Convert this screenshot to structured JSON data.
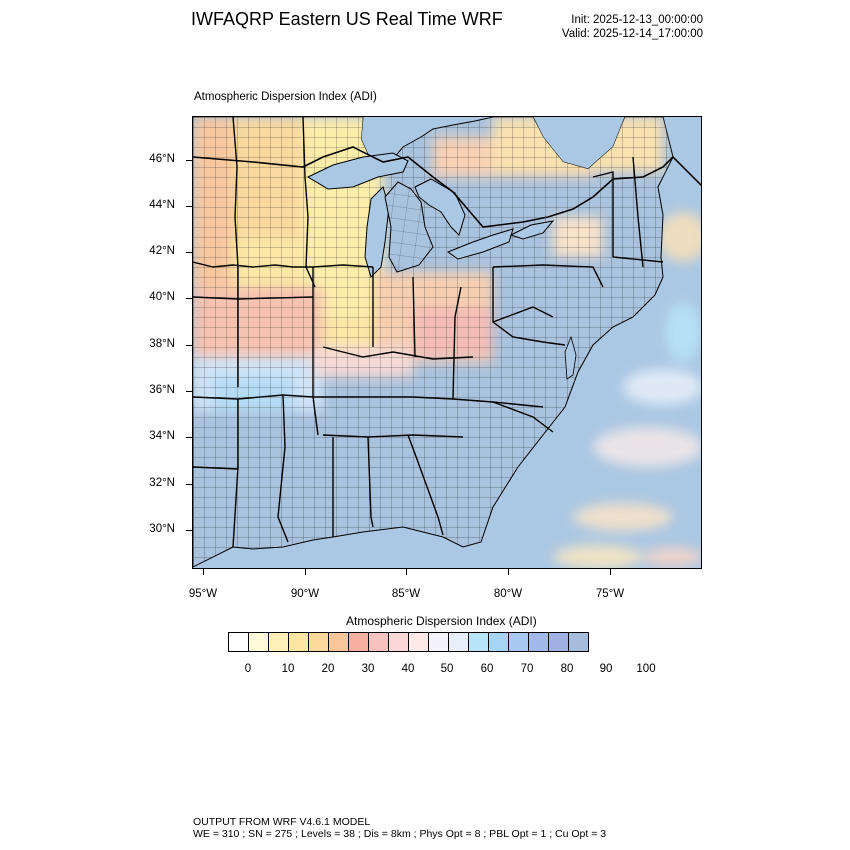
{
  "header": {
    "title": "IWFAQRP Eastern US Real Time WRF",
    "init": "Init: 2025-12-13_00:00:00",
    "valid": "Valid: 2025-12-14_17:00:00"
  },
  "map": {
    "subtitle": "Atmospheric Dispersion Index   (ADI)",
    "lat_labels": [
      "46°N",
      "44°N",
      "42°N",
      "40°N",
      "38°N",
      "36°N",
      "34°N",
      "32°N",
      "30°N"
    ],
    "lon_labels": [
      "95°W",
      "90°W",
      "85°W",
      "80°W",
      "75°W"
    ],
    "colors": {
      "low_orange": "#f6cf9a",
      "low_yellow": "#fbeaa0",
      "mid_pink": "#f3c0b8",
      "high_blue": "#a8c4e0",
      "water_blue": "#aac7e3",
      "land_outline": "#000000"
    }
  },
  "legend": {
    "title": "Atmospheric Dispersion Index  (ADI)",
    "labels": [
      "0",
      "10",
      "20",
      "30",
      "40",
      "50",
      "60",
      "70",
      "80",
      "90",
      "100"
    ],
    "colors": [
      "#ffffff",
      "#fffbd8",
      "#fdf0b8",
      "#fce6a2",
      "#fbd89b",
      "#f9c79b",
      "#f6b0a0",
      "#f7c2c0",
      "#fad8d8",
      "#fce9e8",
      "#f4f2fa",
      "#e8eefa",
      "#b7e4f7",
      "#a6d4f6",
      "#a6c8f2",
      "#a2b9ea",
      "#9eb1e2",
      "#a5bcdc"
    ]
  },
  "footer": {
    "line1": "OUTPUT FROM WRF V4.6.1 MODEL",
    "line2": "WE = 310 ; SN = 275 ; Levels = 38 ; Dis = 8km ; Phys Opt = 8 ; PBL Opt = 1 ; Cu Opt = 3"
  }
}
